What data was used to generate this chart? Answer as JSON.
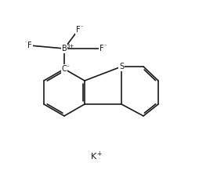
{
  "background_color": "#ffffff",
  "line_color": "#1a1a1a",
  "line_width": 1.2,
  "text_color": "#1a1a1a",
  "font_size": 7.0,
  "sup_font_size": 5.0,
  "B_label": "B",
  "B_sup": "3+",
  "C_label": "C",
  "C_sup": "⁻",
  "S_label": "S",
  "F_label": "F",
  "F_sup": "⁻",
  "K_label": "K",
  "K_sup": "+"
}
